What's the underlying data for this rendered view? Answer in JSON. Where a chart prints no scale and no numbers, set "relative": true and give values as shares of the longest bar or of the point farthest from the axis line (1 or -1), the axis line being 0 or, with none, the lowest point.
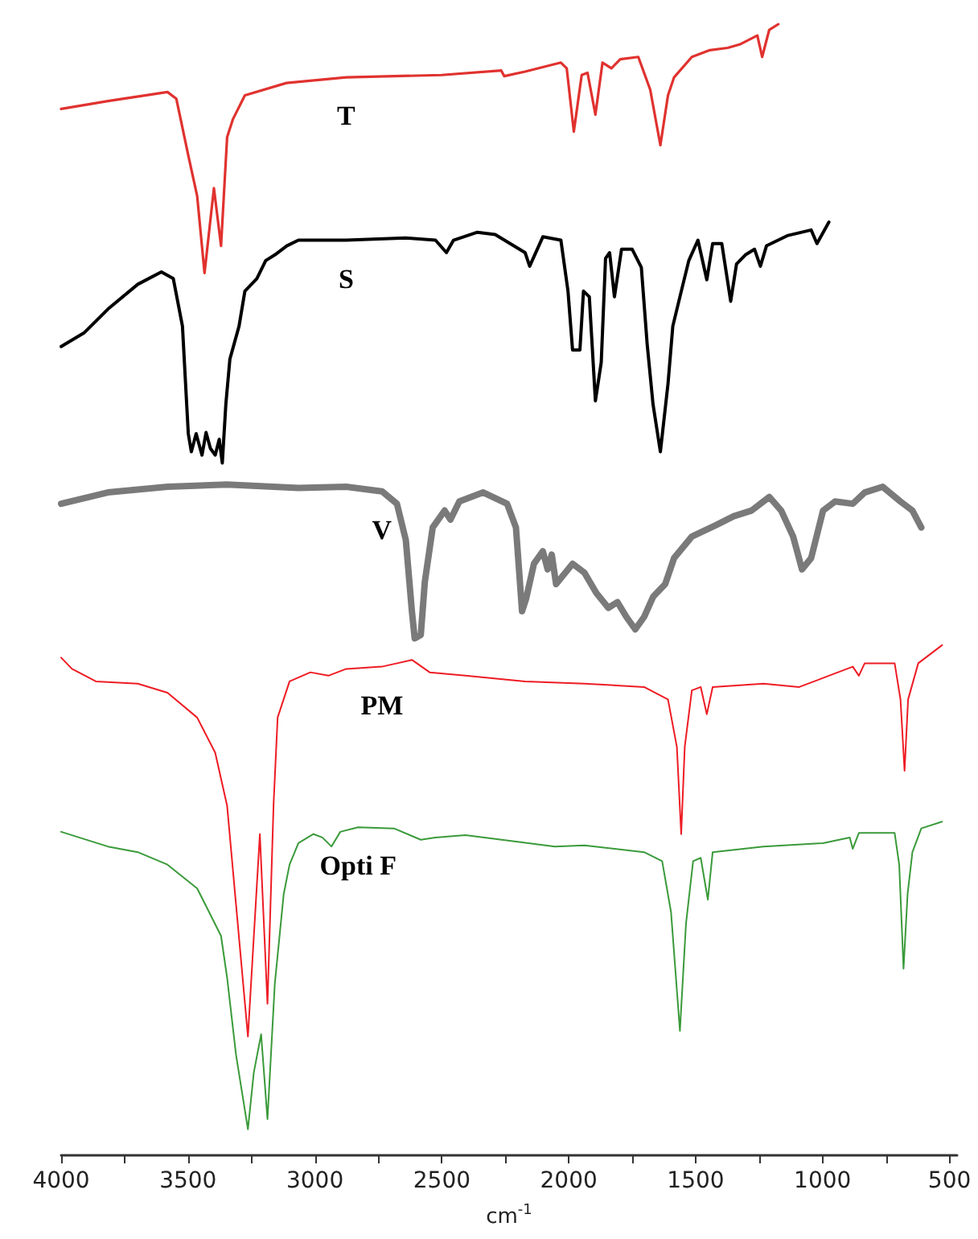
{
  "chart_data": {
    "type": "line",
    "relative": true,
    "xlabel": "cm$^{-1}$",
    "xlim": [
      4000,
      470
    ],
    "xticks": [
      4000,
      {
        "value": 3750,
        "label": null
      },
      3500,
      {
        "value": 3250,
        "label": null
      },
      3000,
      {
        "value": 2750,
        "label": null
      },
      2500,
      {
        "value": 2250,
        "label": null
      },
      2000,
      {
        "value": 1750,
        "label": null
      },
      1500,
      {
        "value": 1250,
        "label": null
      },
      1000,
      {
        "value": 750,
        "label": null
      },
      500
    ],
    "grid": false,
    "legend": false,
    "marker": "none",
    "line_style": "solid",
    "series": [
      {
        "name": "T",
        "color": "#e0322f",
        "x": [
          4000,
          3816,
          3581,
          3546,
          3499,
          3464,
          3435,
          3398,
          3370,
          3346,
          3323,
          3276,
          3112,
          2877,
          2501,
          2266,
          2254,
          2172,
          2031,
          2008,
          1980,
          1949,
          1926,
          1895,
          1867,
          1832,
          1797,
          1726,
          1679,
          1639,
          1609,
          1585,
          1515,
          1444,
          1374,
          1327,
          1257,
          1238,
          1210,
          1174
        ],
        "values": [
          0.925,
          0.932,
          0.94,
          0.934,
          0.884,
          0.848,
          0.78,
          0.855,
          0.804,
          0.9,
          0.916,
          0.937,
          0.948,
          0.953,
          0.955,
          0.959,
          0.954,
          0.958,
          0.966,
          0.961,
          0.905,
          0.955,
          0.957,
          0.92,
          0.966,
          0.961,
          0.969,
          0.971,
          0.942,
          0.893,
          0.937,
          0.953,
          0.971,
          0.977,
          0.979,
          0.982,
          0.99,
          0.971,
          0.995,
          1
        ]
      },
      {
        "name": "S",
        "color": "#000000",
        "x": [
          4000,
          3910,
          3816,
          3698,
          3605,
          3558,
          3522,
          3499,
          3487,
          3468,
          3445,
          3429,
          3412,
          3393,
          3377,
          3365,
          3351,
          3335,
          3299,
          3276,
          3229,
          3194,
          3158,
          3111,
          3065,
          2877,
          2642,
          2525,
          2482,
          2454,
          2360,
          2290,
          2172,
          2154,
          2102,
          2031,
          2003,
          1985,
          1956,
          1942,
          1919,
          1895,
          1872,
          1855,
          1839,
          1820,
          1792,
          1750,
          1714,
          1691,
          1668,
          1639,
          1609,
          1590,
          1562,
          1527,
          1491,
          1456,
          1433,
          1397,
          1362,
          1339,
          1304,
          1268,
          1245,
          1221,
          1139,
          1045,
          1022,
          975
        ],
        "values": [
          0.715,
          0.727,
          0.748,
          0.77,
          0.781,
          0.775,
          0.733,
          0.638,
          0.622,
          0.638,
          0.619,
          0.639,
          0.625,
          0.619,
          0.633,
          0.612,
          0.664,
          0.704,
          0.733,
          0.764,
          0.775,
          0.791,
          0.796,
          0.804,
          0.809,
          0.809,
          0.811,
          0.809,
          0.798,
          0.809,
          0.816,
          0.814,
          0.798,
          0.786,
          0.812,
          0.809,
          0.764,
          0.712,
          0.712,
          0.764,
          0.759,
          0.667,
          0.701,
          0.793,
          0.798,
          0.759,
          0.801,
          0.801,
          0.785,
          0.717,
          0.664,
          0.622,
          0.682,
          0.733,
          0.759,
          0.791,
          0.809,
          0.774,
          0.806,
          0.806,
          0.755,
          0.788,
          0.796,
          0.801,
          0.786,
          0.804,
          0.813,
          0.818,
          0.806,
          0.825
        ]
      },
      {
        "name": "V",
        "color": "#7a7a7a",
        "x": [
          4000,
          3816,
          3581,
          3346,
          3065,
          2877,
          2736,
          2677,
          2642,
          2618,
          2607,
          2583,
          2567,
          2536,
          2489,
          2466,
          2431,
          2337,
          2243,
          2208,
          2184,
          2168,
          2137,
          2102,
          2083,
          2067,
          2050,
          1985,
          1938,
          1891,
          1844,
          1808,
          1773,
          1738,
          1703,
          1667,
          1620,
          1585,
          1515,
          1421,
          1350,
          1280,
          1210,
          1163,
          1116,
          1081,
          1045,
          998,
          951,
          881,
          834,
          763,
          693,
          646,
          611
        ],
        "values": [
          0.576,
          0.586,
          0.591,
          0.593,
          0.59,
          0.591,
          0.587,
          0.576,
          0.544,
          0.481,
          0.457,
          0.46,
          0.507,
          0.555,
          0.57,
          0.562,
          0.578,
          0.586,
          0.576,
          0.555,
          0.481,
          0.492,
          0.523,
          0.534,
          0.518,
          0.531,
          0.505,
          0.523,
          0.515,
          0.497,
          0.484,
          0.489,
          0.476,
          0.465,
          0.476,
          0.494,
          0.505,
          0.528,
          0.547,
          0.557,
          0.565,
          0.57,
          0.582,
          0.57,
          0.547,
          0.518,
          0.528,
          0.57,
          0.578,
          0.576,
          0.586,
          0.591,
          0.578,
          0.57,
          0.555
        ]
      },
      {
        "name": "PM",
        "color": "#ee1c24",
        "x": [
          4000,
          3957,
          3863,
          3698,
          3581,
          3464,
          3393,
          3346,
          3264,
          3217,
          3187,
          3163,
          3147,
          3100,
          3018,
          2947,
          2877,
          2736,
          2618,
          2548,
          2407,
          2172,
          1938,
          1703,
          1609,
          1574,
          1557,
          1543,
          1515,
          1480,
          1456,
          1433,
          1233,
          1092,
          998,
          881,
          857,
          834,
          716,
          693,
          677,
          663,
          623,
          529
        ],
        "values": [
          0.44,
          0.43,
          0.419,
          0.417,
          0.409,
          0.387,
          0.356,
          0.309,
          0.105,
          0.284,
          0.134,
          0.31,
          0.387,
          0.419,
          0.427,
          0.424,
          0.43,
          0.432,
          0.438,
          0.427,
          0.424,
          0.419,
          0.417,
          0.414,
          0.403,
          0.361,
          0.284,
          0.361,
          0.411,
          0.414,
          0.39,
          0.414,
          0.417,
          0.414,
          0.422,
          0.432,
          0.424,
          0.435,
          0.435,
          0.403,
          0.34,
          0.403,
          0.435,
          0.451
        ]
      },
      {
        "name": "Opti F",
        "color": "#3a9a3a",
        "x": [
          4000,
          3816,
          3698,
          3581,
          3464,
          3370,
          3346,
          3311,
          3264,
          3241,
          3212,
          3187,
          3158,
          3123,
          3100,
          3065,
          3006,
          2971,
          2935,
          2900,
          2830,
          2689,
          2583,
          2525,
          2407,
          2196,
          2055,
          1938,
          1703,
          1632,
          1597,
          1562,
          1538,
          1510,
          1480,
          1452,
          1433,
          1233,
          998,
          893,
          881,
          857,
          716,
          698,
          681,
          665,
          646,
          611,
          529
        ],
        "values": [
          0.286,
          0.273,
          0.268,
          0.257,
          0.236,
          0.194,
          0.157,
          0.089,
          0.023,
          0.073,
          0.107,
          0.032,
          0.152,
          0.231,
          0.257,
          0.276,
          0.284,
          0.281,
          0.273,
          0.286,
          0.29,
          0.289,
          0.279,
          0.281,
          0.283,
          0.277,
          0.273,
          0.274,
          0.268,
          0.26,
          0.215,
          0.11,
          0.205,
          0.26,
          0.263,
          0.226,
          0.268,
          0.273,
          0.276,
          0.281,
          0.271,
          0.285,
          0.285,
          0.257,
          0.165,
          0.231,
          0.268,
          0.289,
          0.295
        ]
      }
    ]
  }
}
